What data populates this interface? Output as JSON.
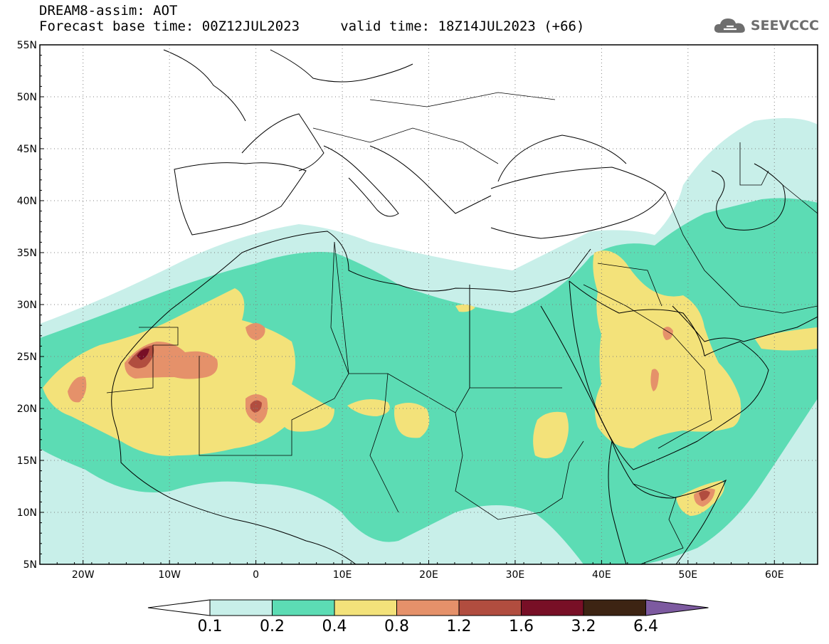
{
  "header": {
    "line1": "DREAM8-assim: AOT",
    "line2": "Forecast base time: 00Z12JUL2023     valid time: 18Z14JUL2023 (+66)"
  },
  "logo": {
    "text": "SEEVCCC",
    "icon": "cloud-icon",
    "color": "#6e6e6e"
  },
  "map": {
    "lon_range": [
      -25,
      65
    ],
    "lat_range": [
      5,
      55
    ],
    "lat_ticks": [
      {
        "v": 55,
        "label": "55N"
      },
      {
        "v": 50,
        "label": "50N"
      },
      {
        "v": 45,
        "label": "45N"
      },
      {
        "v": 40,
        "label": "40N"
      },
      {
        "v": 35,
        "label": "35N"
      },
      {
        "v": 30,
        "label": "30N"
      },
      {
        "v": 25,
        "label": "25N"
      },
      {
        "v": 20,
        "label": "20N"
      },
      {
        "v": 15,
        "label": "15N"
      },
      {
        "v": 10,
        "label": "10N"
      },
      {
        "v": 5,
        "label": "5N"
      }
    ],
    "lon_ticks": [
      {
        "v": -20,
        "label": "20W"
      },
      {
        "v": -10,
        "label": "10W"
      },
      {
        "v": 0,
        "label": "0"
      },
      {
        "v": 10,
        "label": "10E"
      },
      {
        "v": 20,
        "label": "20E"
      },
      {
        "v": 30,
        "label": "30E"
      },
      {
        "v": 40,
        "label": "40E"
      },
      {
        "v": 50,
        "label": "50E"
      },
      {
        "v": 60,
        "label": "60E"
      }
    ],
    "grid": "dotted"
  },
  "colorbar": {
    "labels": [
      "0.1",
      "0.2",
      "0.4",
      "0.8",
      "1.2",
      "1.6",
      "3.2",
      "6.4"
    ],
    "colors": [
      "#c8efe9",
      "#5cdcb4",
      "#f3e27a",
      "#e5916a",
      "#b14d3f",
      "#780f26",
      "#3d2413"
    ],
    "under_color": "#ffffff",
    "over_color": "#7d5aa0"
  },
  "palette": {
    "c1": "#c8efe9",
    "c2": "#5cdcb4",
    "c3": "#f3e27a",
    "c4": "#e5916a",
    "c5": "#b14d3f",
    "c6": "#780f26"
  }
}
